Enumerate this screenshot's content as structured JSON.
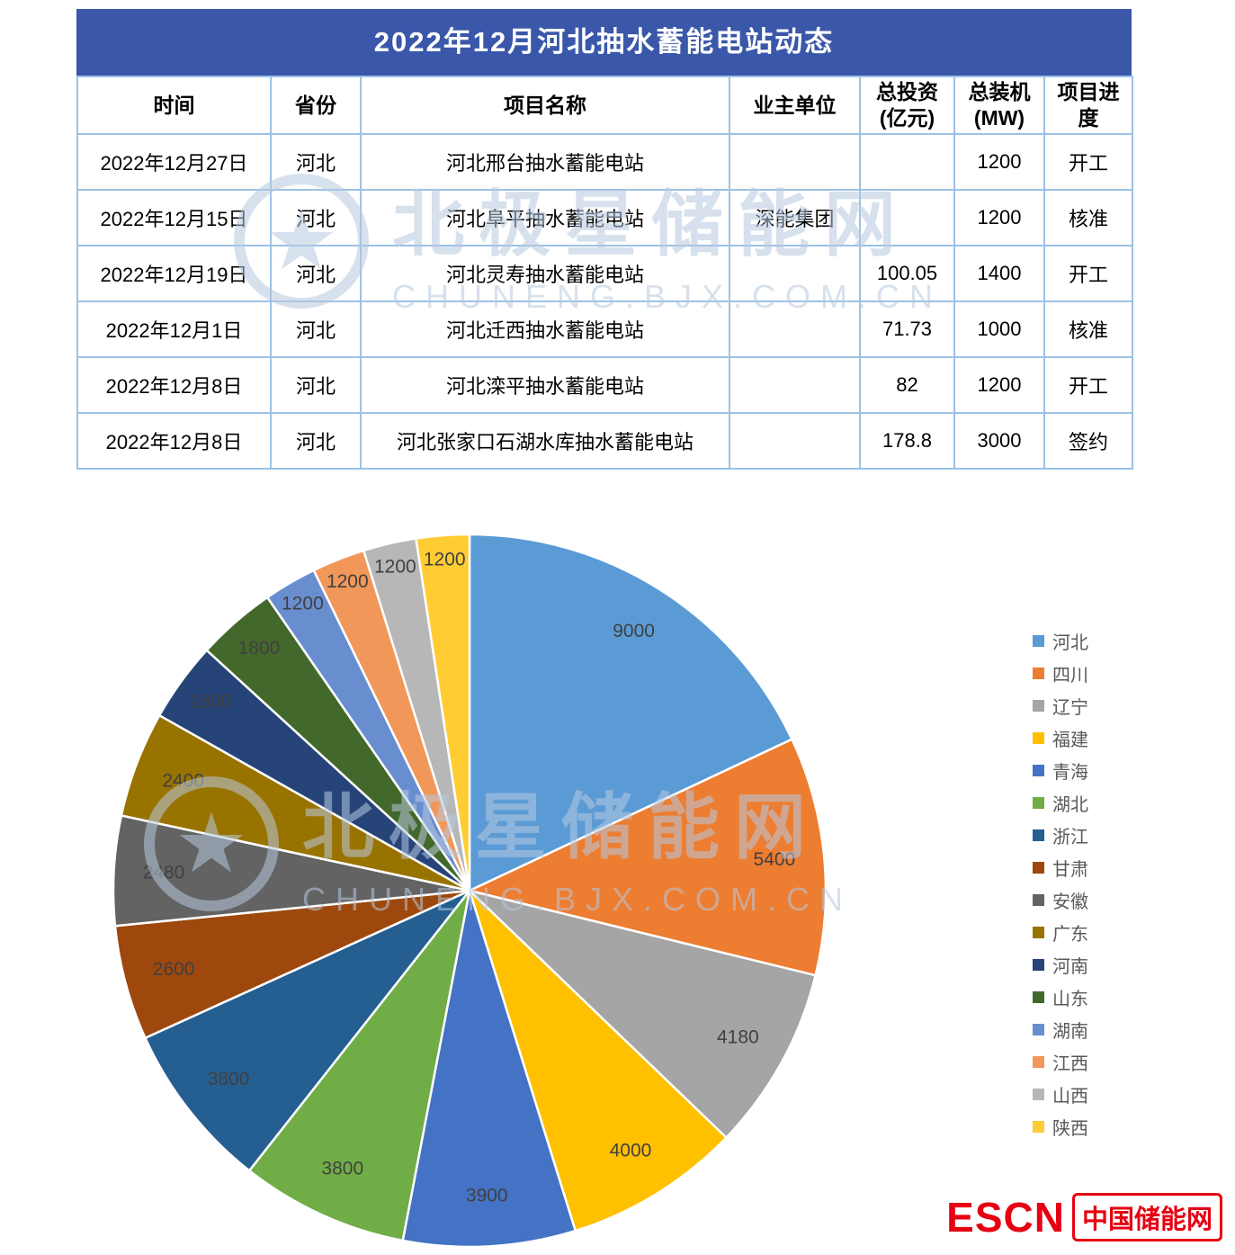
{
  "theme": {
    "table_header_bg": "#3A57A9",
    "table_border": "#9CC2E5",
    "logo_red": "#E60012",
    "watermark_color": "#B7C9E0",
    "legend_text": "#595959",
    "pie_label": "#404040"
  },
  "chart_data": [
    {
      "type": "table",
      "title": "2022年12月河北抽水蓄能电站动态",
      "columns": [
        "时间",
        "省份",
        "项目名称",
        "业主单位",
        "总投资(亿元)",
        "总装机(MW)",
        "项目进度"
      ],
      "rows": [
        [
          "2022年12月27日",
          "河北",
          "河北邢台抽水蓄能电站",
          "",
          "",
          "1200",
          "开工"
        ],
        [
          "2022年12月15日",
          "河北",
          "河北阜平抽水蓄能电站",
          "深能集团",
          "",
          "1200",
          "核准"
        ],
        [
          "2022年12月19日",
          "河北",
          "河北灵寿抽水蓄能电站",
          "",
          "100.05",
          "1400",
          "开工"
        ],
        [
          "2022年12月1日",
          "河北",
          "河北迁西抽水蓄能电站",
          "",
          "71.73",
          "1000",
          "核准"
        ],
        [
          "2022年12月8日",
          "河北",
          "河北滦平抽水蓄能电站",
          "",
          "82",
          "1200",
          "开工"
        ],
        [
          "2022年12月8日",
          "河北",
          "河北张家口石湖水库抽水蓄能电站",
          "",
          "178.8",
          "3000",
          "签约"
        ]
      ]
    },
    {
      "type": "pie",
      "categories": [
        "河北",
        "四川",
        "辽宁",
        "福建",
        "青海",
        "湖北",
        "浙江",
        "甘肃",
        "安徽",
        "广东",
        "河南",
        "山东",
        "湖南",
        "江西",
        "山西",
        "陕西"
      ],
      "values": [
        9000,
        5400,
        4180,
        4000,
        3900,
        3800,
        3800,
        2600,
        2480,
        2400,
        1800,
        1800,
        1200,
        1200,
        1200,
        1200
      ],
      "colors": [
        "#5B9BD5",
        "#ED7D31",
        "#A5A5A5",
        "#FFC000",
        "#4472C4",
        "#70AD47",
        "#255E91",
        "#9E480E",
        "#636363",
        "#997300",
        "#264478",
        "#43682B",
        "#698ED0",
        "#F1975A",
        "#B7B7B7",
        "#FFCD33"
      ],
      "start_angle_deg": 0,
      "direction": "clockwise",
      "legend_position": "right",
      "grid": false
    }
  ],
  "watermark": {
    "title": "北极星储能网",
    "subtitle": "CHUNENG.BJX.COM.CN",
    "logo_glyph": "★"
  },
  "footer": {
    "brand": "ESCN",
    "site": "中国储能网"
  }
}
